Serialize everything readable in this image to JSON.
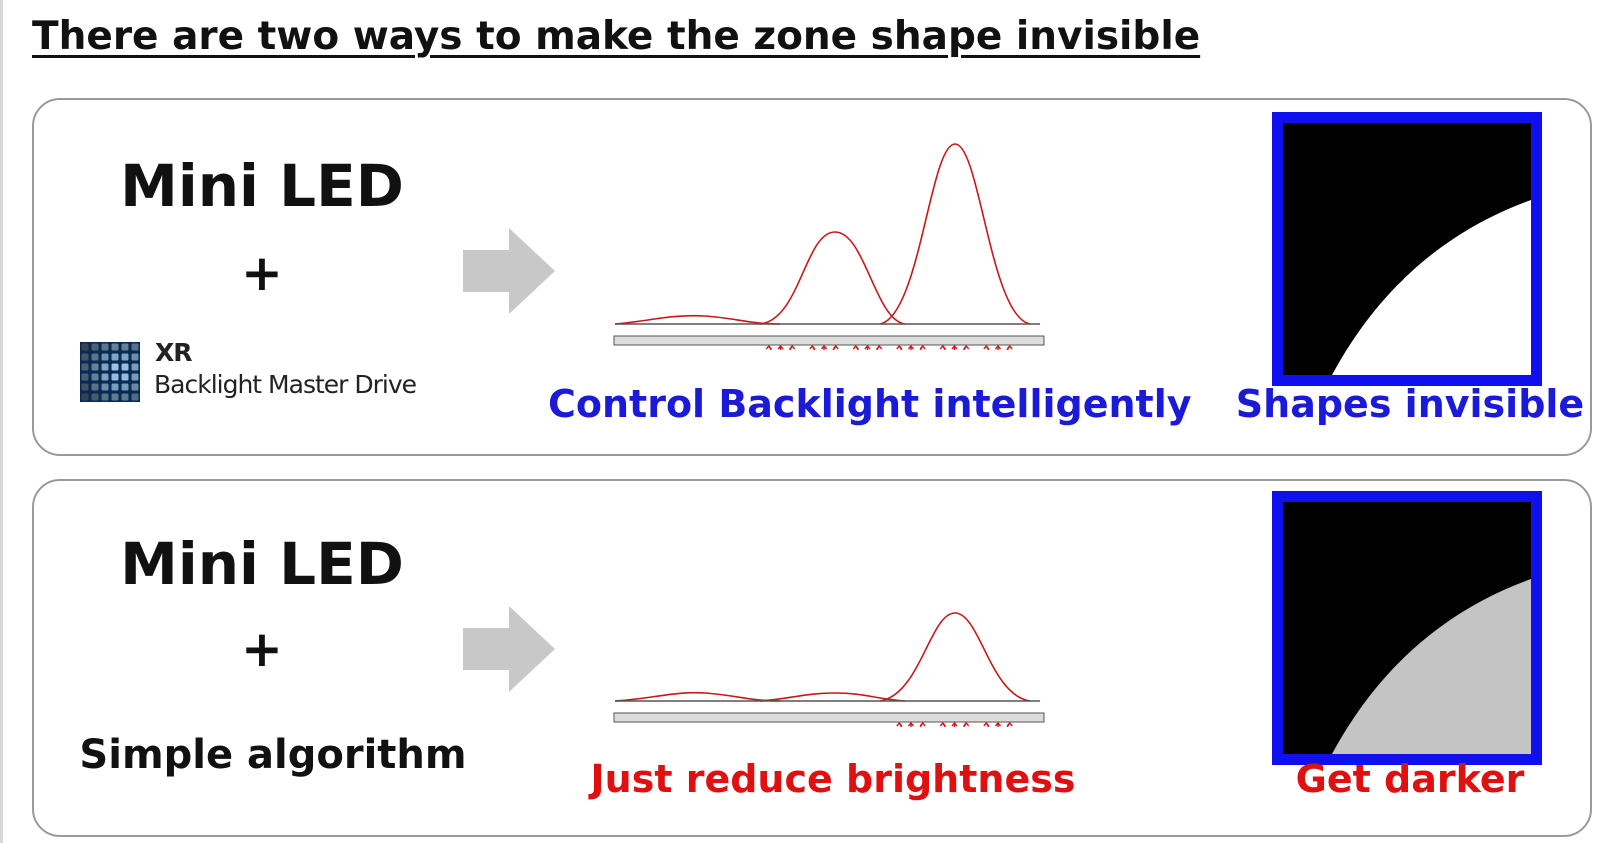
{
  "title": "There are two ways to make the zone shape invisible",
  "colors": {
    "caption_good": "#1a1ad8",
    "caption_bad": "#e01010",
    "frame": "#1010ee",
    "curve": "#c81818",
    "arrow": "#c8c8c8",
    "bright_area": "#ffffff",
    "dim_area": "#c4c4c4"
  },
  "rows": [
    {
      "tech": "Mini LED",
      "plus": "+",
      "logo": {
        "line1": "XR",
        "line2": "Backlight Master Drive"
      },
      "caption": "Control Backlight intelligently",
      "result": "Shapes invisible",
      "led_states": [
        "off",
        "off",
        "off",
        "on",
        "on",
        "on",
        "on",
        "on",
        "on"
      ]
    },
    {
      "tech": "Mini LED",
      "plus": "+",
      "method": "Simple algorithm",
      "caption": "Just reduce brightness",
      "result": "Get darker",
      "led_states": [
        "off",
        "off",
        "off",
        "off",
        "off",
        "off",
        "on",
        "on",
        "on"
      ]
    }
  ]
}
